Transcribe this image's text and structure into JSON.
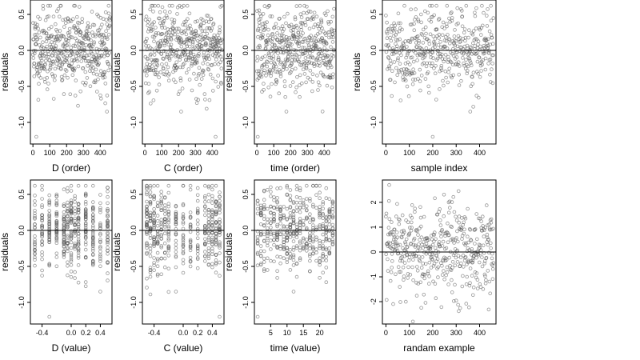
{
  "chart_data": [
    {
      "type": "scatter",
      "xlabel": "D (order)",
      "ylabel": "residuals",
      "x_mode": "order",
      "xlim": [
        -15,
        470
      ],
      "ylim": [
        -1.3,
        0.7
      ],
      "xticks": [
        0,
        100,
        200,
        300,
        400
      ],
      "yticks": [
        0.5,
        0.0,
        -0.5,
        -1.0
      ],
      "ytick_labels": [
        "0.5",
        "0.0",
        "-0.5",
        "-1.0"
      ],
      "reference_y": 0,
      "n_points": 460,
      "seed": 11,
      "y_sd": 0.28,
      "y_mean": 0.02,
      "y_min": -1.2,
      "y_max": 0.62,
      "outliers": [
        [
          20,
          -1.2
        ],
        [
          440,
          -0.85
        ]
      ]
    },
    {
      "type": "scatter",
      "xlabel": "C (order)",
      "ylabel": "residuals",
      "x_mode": "order",
      "xlim": [
        -15,
        470
      ],
      "ylim": [
        -1.3,
        0.7
      ],
      "xticks": [
        0,
        100,
        200,
        300,
        400
      ],
      "yticks": [
        0.5,
        0.0,
        -0.5,
        -1.0
      ],
      "ytick_labels": [
        "0.5",
        "0.0",
        "-0.5",
        "-1.0"
      ],
      "reference_y": 0,
      "n_points": 460,
      "seed": 23,
      "y_sd": 0.28,
      "y_mean": 0.02,
      "y_min": -1.2,
      "y_max": 0.62,
      "outliers": [
        [
          215,
          -0.85
        ],
        [
          420,
          -1.2
        ]
      ]
    },
    {
      "type": "scatter",
      "xlabel": "time (order)",
      "ylabel": "residuals",
      "x_mode": "order",
      "xlim": [
        -15,
        470
      ],
      "ylim": [
        -1.3,
        0.7
      ],
      "xticks": [
        0,
        100,
        200,
        300,
        400
      ],
      "yticks": [
        0.5,
        0.0,
        -0.5,
        -1.0
      ],
      "ytick_labels": [
        "0.5",
        "0.0",
        "-0.5",
        "-1.0"
      ],
      "reference_y": 0,
      "n_points": 460,
      "seed": 37,
      "y_sd": 0.28,
      "y_mean": 0.02,
      "y_min": -1.2,
      "y_max": 0.62,
      "outliers": [
        [
          5,
          -1.2
        ],
        [
          175,
          -0.85
        ]
      ]
    },
    {
      "type": "scatter",
      "xlabel": "sample index",
      "ylabel": "residuals",
      "x_mode": "order",
      "xlim": [
        -15,
        470
      ],
      "ylim": [
        -1.3,
        0.7
      ],
      "xticks": [
        0,
        100,
        200,
        300,
        400
      ],
      "yticks": [
        0.5,
        0.0,
        -0.5,
        -1.0
      ],
      "ytick_labels": [
        "0.5",
        "0.0",
        "-0.5",
        "-1.0"
      ],
      "reference_y": 0,
      "n_points": 460,
      "seed": 41,
      "y_sd": 0.28,
      "y_mean": 0.02,
      "y_min": -1.2,
      "y_max": 0.62,
      "outliers": [
        [
          200,
          -1.2
        ],
        [
          360,
          -0.85
        ]
      ]
    },
    {
      "type": "scatter",
      "xlabel": "D (value)",
      "ylabel": "residuals",
      "x_mode": "levels",
      "x_levels": [
        -0.5,
        -0.4,
        -0.3,
        -0.2,
        -0.1,
        -0.05,
        0.0,
        0.05,
        0.1,
        0.2,
        0.3,
        0.4,
        0.5
      ],
      "xlim": [
        -0.56,
        0.56
      ],
      "ylim": [
        -1.3,
        0.7
      ],
      "xticks": [
        -0.4,
        0.0,
        0.2,
        0.4
      ],
      "xtick_labels": [
        "-0.4",
        "0.0",
        "0.2",
        "0.4"
      ],
      "yticks": [
        0.5,
        0.0,
        -0.5,
        -1.0
      ],
      "ytick_labels": [
        "0.5",
        "0.0",
        "-0.5",
        "-1.0"
      ],
      "reference_y": 0,
      "n_points": 460,
      "seed": 53,
      "y_sd": 0.28,
      "y_mean": 0.02,
      "y_min": -1.2,
      "y_max": 0.62,
      "outliers": [
        [
          -0.3,
          -1.2
        ],
        [
          0.4,
          -0.85
        ]
      ]
    },
    {
      "type": "scatter",
      "xlabel": "C (value)",
      "ylabel": "residuals",
      "x_mode": "levels",
      "x_levels": [
        -0.5,
        -0.45,
        -0.4,
        -0.35,
        -0.3,
        -0.25,
        -0.2,
        -0.1,
        0.0,
        0.1,
        0.2,
        0.3,
        0.35,
        0.4,
        0.45,
        0.5
      ],
      "xlim": [
        -0.56,
        0.56
      ],
      "ylim": [
        -1.3,
        0.7
      ],
      "xticks": [
        -0.4,
        0.0,
        0.2,
        0.4
      ],
      "xtick_labels": [
        "-0.4",
        "0.0",
        "0.2",
        "0.4"
      ],
      "yticks": [
        0.5,
        0.0,
        -0.5,
        -1.0
      ],
      "ytick_labels": [
        "0.5",
        "0.0",
        "-0.5",
        "-1.0"
      ],
      "reference_y": 0,
      "n_points": 460,
      "seed": 67,
      "y_sd": 0.28,
      "y_mean": 0.02,
      "y_min": -1.2,
      "y_max": 0.62,
      "outliers": [
        [
          -0.1,
          -0.85
        ],
        [
          0.5,
          -1.2
        ]
      ]
    },
    {
      "type": "scatter",
      "xlabel": "time (value)",
      "ylabel": "residuals",
      "x_mode": "levels",
      "x_levels": [
        1,
        2,
        3,
        4,
        5,
        6,
        7,
        8,
        9,
        10,
        11,
        12,
        13,
        14,
        15,
        16,
        17,
        18,
        19,
        20,
        21,
        22,
        23,
        24
      ],
      "xlim": [
        0,
        25
      ],
      "ylim": [
        -1.3,
        0.7
      ],
      "xticks": [
        5,
        10,
        15,
        20
      ],
      "xtick_labels": [
        "5",
        "10",
        "15",
        "20"
      ],
      "yticks": [
        0.5,
        0.0,
        -0.5,
        -1.0
      ],
      "ytick_labels": [
        "0.5",
        "0.0",
        "-0.5",
        "-1.0"
      ],
      "reference_y": 0,
      "n_points": 460,
      "seed": 79,
      "y_sd": 0.28,
      "y_mean": 0.02,
      "y_min": -1.2,
      "y_max": 0.62,
      "outliers": [
        [
          1,
          -1.2
        ],
        [
          12,
          -0.85
        ]
      ]
    },
    {
      "type": "scatter",
      "xlabel": "randam example",
      "ylabel": "",
      "x_mode": "order",
      "xlim": [
        -15,
        470
      ],
      "ylim": [
        -2.9,
        2.9
      ],
      "xticks": [
        0,
        100,
        200,
        300,
        400
      ],
      "yticks": [
        2,
        1,
        0,
        -1,
        -2
      ],
      "ytick_labels": [
        "2",
        "1",
        "0",
        "-1",
        "-2"
      ],
      "reference_y": 0,
      "n_points": 460,
      "seed": 97,
      "y_sd": 1.0,
      "y_mean": 0.0,
      "y_min": -2.8,
      "y_max": 2.7,
      "outliers": []
    }
  ]
}
